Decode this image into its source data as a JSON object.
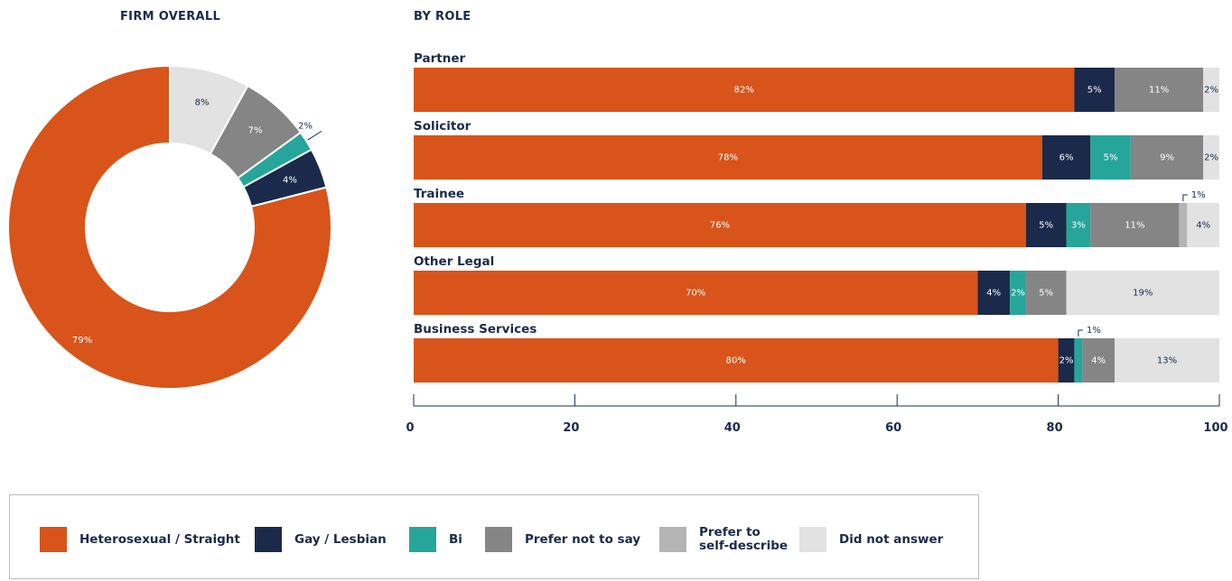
{
  "headings": {
    "firm_overall": "FIRM OVERALL",
    "by_role": "BY ROLE"
  },
  "colors": {
    "heterosexual": "#d8541a",
    "gay_lesbian": "#1b2a4a",
    "bi": "#26a69a",
    "prefer_not": "#858585",
    "self_describe": "#b4b4b4",
    "no_answer": "#e2e2e2"
  },
  "legend": [
    {
      "key": "heterosexual",
      "label": "Heterosexual / Straight",
      "color": "#d8541a"
    },
    {
      "key": "gay_lesbian",
      "label": "Gay / Lesbian",
      "color": "#1b2a4a"
    },
    {
      "key": "bi",
      "label": "Bi",
      "color": "#26a69a"
    },
    {
      "key": "prefer_not",
      "label": "Prefer not to say",
      "color": "#858585"
    },
    {
      "key": "self_describe",
      "label": "Prefer to\nself-describe",
      "color": "#b4b4b4"
    },
    {
      "key": "no_answer",
      "label": "Did not answer",
      "color": "#e2e2e2"
    }
  ],
  "chart_data": [
    {
      "type": "pie",
      "title": "FIRM OVERALL",
      "donut": true,
      "slices": [
        {
          "key": "heterosexual",
          "value": 79,
          "label": "79%"
        },
        {
          "key": "gay_lesbian",
          "value": 4,
          "label": "4%"
        },
        {
          "key": "bi",
          "value": 2,
          "label": "2%"
        },
        {
          "key": "prefer_not",
          "value": 7,
          "label": "7%"
        },
        {
          "key": "no_answer",
          "value": 8,
          "label": "8%"
        }
      ]
    },
    {
      "type": "bar",
      "orientation": "horizontal",
      "stacked": true,
      "title": "BY ROLE",
      "xlim": [
        0,
        100
      ],
      "xticks": [
        "0",
        "20",
        "40",
        "60",
        "80",
        "100"
      ],
      "series_keys": [
        "heterosexual",
        "gay_lesbian",
        "bi",
        "prefer_not",
        "self_describe",
        "no_answer"
      ],
      "categories": [
        {
          "name": "Partner",
          "values": [
            82,
            5,
            0,
            11,
            0,
            2
          ],
          "labels": [
            "82%",
            "5%",
            "",
            "11%",
            "",
            "2%"
          ]
        },
        {
          "name": "Solicitor",
          "values": [
            78,
            6,
            5,
            9,
            0,
            2
          ],
          "labels": [
            "78%",
            "6%",
            "5%",
            "9%",
            "",
            "2%"
          ]
        },
        {
          "name": "Trainee",
          "values": [
            76,
            5,
            3,
            11,
            1,
            4
          ],
          "labels": [
            "76%",
            "5%",
            "3%",
            "11%",
            "1%",
            "4%"
          ]
        },
        {
          "name": "Other Legal",
          "values": [
            70,
            4,
            2,
            5,
            0,
            19
          ],
          "labels": [
            "70%",
            "4%",
            "2%",
            "5%",
            "",
            "19%"
          ]
        },
        {
          "name": "Business Services",
          "values": [
            80,
            2,
            1,
            4,
            0,
            13
          ],
          "labels": [
            "80%",
            "2%",
            "1%",
            "4%",
            "",
            "13%"
          ]
        }
      ]
    }
  ]
}
